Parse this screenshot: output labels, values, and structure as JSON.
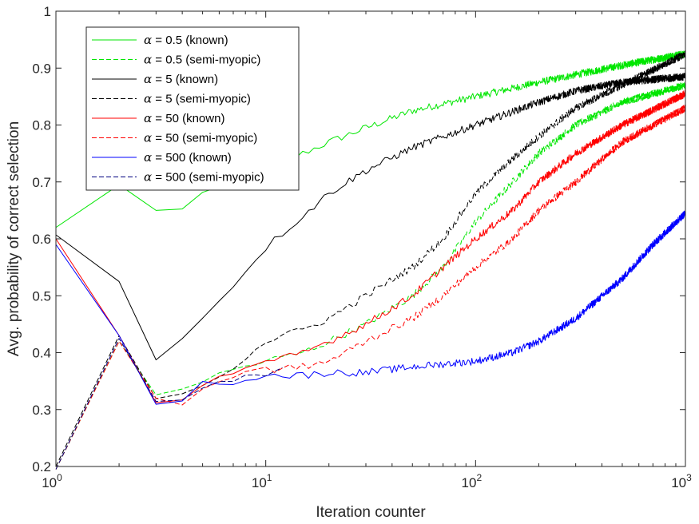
{
  "chart_data": {
    "type": "line",
    "xscale": "log",
    "xlim": [
      1,
      1000
    ],
    "ylim": [
      0.2,
      1.0
    ],
    "xlabel": "Iteration counter",
    "ylabel": "Avg. probability of correct selection",
    "xticks": [
      {
        "value": 1,
        "base": "10",
        "exp": "0"
      },
      {
        "value": 10,
        "base": "10",
        "exp": "1"
      },
      {
        "value": 100,
        "base": "10",
        "exp": "2"
      },
      {
        "value": 1000,
        "base": "10",
        "exp": "3"
      }
    ],
    "yticks": [
      {
        "value": 0.2,
        "label": "0.2"
      },
      {
        "value": 0.3,
        "label": "0.3"
      },
      {
        "value": 0.4,
        "label": "0.4"
      },
      {
        "value": 0.5,
        "label": "0.5"
      },
      {
        "value": 0.6,
        "label": "0.6"
      },
      {
        "value": 0.7,
        "label": "0.7"
      },
      {
        "value": 0.8,
        "label": "0.8"
      },
      {
        "value": 0.9,
        "label": "0.9"
      },
      {
        "value": 1.0,
        "label": "1"
      }
    ],
    "legend_position": "top-left",
    "series": [
      {
        "name": "α = 0.5 (known)",
        "alpha_symbol": "α",
        "rest": " = 0.5 (known)",
        "color": "#00e600",
        "dash": "solid",
        "points": [
          [
            1,
            0.62
          ],
          [
            2,
            0.695
          ],
          [
            3,
            0.648
          ],
          [
            4,
            0.655
          ],
          [
            5,
            0.68
          ],
          [
            6,
            0.685
          ],
          [
            7,
            0.695
          ],
          [
            10,
            0.72
          ],
          [
            15,
            0.75
          ],
          [
            20,
            0.77
          ],
          [
            30,
            0.795
          ],
          [
            50,
            0.825
          ],
          [
            100,
            0.85
          ],
          [
            200,
            0.875
          ],
          [
            500,
            0.905
          ],
          [
            1000,
            0.925
          ]
        ]
      },
      {
        "name": "α = 0.5 (semi-myopic)",
        "alpha_symbol": "α",
        "rest": " = 0.5 (semi-myopic)",
        "color": "#00e600",
        "dash": "dashed",
        "points": [
          [
            1,
            0.195
          ],
          [
            2,
            0.42
          ],
          [
            3,
            0.325
          ],
          [
            4,
            0.34
          ],
          [
            5,
            0.35
          ],
          [
            7,
            0.37
          ],
          [
            10,
            0.385
          ],
          [
            15,
            0.4
          ],
          [
            20,
            0.42
          ],
          [
            30,
            0.45
          ],
          [
            50,
            0.5
          ],
          [
            70,
            0.55
          ],
          [
            100,
            0.63
          ],
          [
            150,
            0.7
          ],
          [
            200,
            0.75
          ],
          [
            300,
            0.8
          ],
          [
            500,
            0.84
          ],
          [
            1000,
            0.87
          ]
        ]
      },
      {
        "name": "α = 5 (known)",
        "alpha_symbol": "α",
        "rest": " = 5 (known)",
        "color": "#000000",
        "dash": "solid",
        "points": [
          [
            1,
            0.607
          ],
          [
            2,
            0.525
          ],
          [
            3,
            0.39
          ],
          [
            4,
            0.43
          ],
          [
            5,
            0.46
          ],
          [
            6,
            0.495
          ],
          [
            7,
            0.515
          ],
          [
            8,
            0.545
          ],
          [
            10,
            0.585
          ],
          [
            15,
            0.64
          ],
          [
            20,
            0.68
          ],
          [
            30,
            0.72
          ],
          [
            50,
            0.76
          ],
          [
            100,
            0.8
          ],
          [
            200,
            0.84
          ],
          [
            300,
            0.86
          ],
          [
            500,
            0.875
          ],
          [
            1000,
            0.885
          ]
        ]
      },
      {
        "name": "α = 5 (semi-myopic)",
        "alpha_symbol": "α",
        "rest": " = 5 (semi-myopic)",
        "color": "#000000",
        "dash": "dashed",
        "points": [
          [
            1,
            0.2
          ],
          [
            2,
            0.43
          ],
          [
            3,
            0.32
          ],
          [
            4,
            0.33
          ],
          [
            5,
            0.345
          ],
          [
            7,
            0.375
          ],
          [
            10,
            0.42
          ],
          [
            15,
            0.44
          ],
          [
            20,
            0.46
          ],
          [
            30,
            0.5
          ],
          [
            50,
            0.55
          ],
          [
            70,
            0.6
          ],
          [
            100,
            0.68
          ],
          [
            150,
            0.74
          ],
          [
            200,
            0.78
          ],
          [
            300,
            0.83
          ],
          [
            500,
            0.87
          ],
          [
            1000,
            0.925
          ]
        ]
      },
      {
        "name": "α = 50 (known)",
        "alpha_symbol": "α",
        "rest": " = 50 (known)",
        "color": "#ff0000",
        "dash": "solid",
        "points": [
          [
            1,
            0.6
          ],
          [
            2,
            0.43
          ],
          [
            3,
            0.315
          ],
          [
            4,
            0.32
          ],
          [
            5,
            0.345
          ],
          [
            7,
            0.365
          ],
          [
            10,
            0.38
          ],
          [
            15,
            0.4
          ],
          [
            20,
            0.42
          ],
          [
            30,
            0.45
          ],
          [
            50,
            0.5
          ],
          [
            70,
            0.55
          ],
          [
            100,
            0.6
          ],
          [
            150,
            0.65
          ],
          [
            200,
            0.7
          ],
          [
            300,
            0.75
          ],
          [
            500,
            0.8
          ],
          [
            1000,
            0.855
          ]
        ]
      },
      {
        "name": "α = 50 (semi-myopic)",
        "alpha_symbol": "α",
        "rest": " = 50 (semi-myopic)",
        "color": "#ff0000",
        "dash": "dashed",
        "points": [
          [
            1,
            0.195
          ],
          [
            2,
            0.42
          ],
          [
            3,
            0.32
          ],
          [
            4,
            0.31
          ],
          [
            5,
            0.335
          ],
          [
            7,
            0.36
          ],
          [
            10,
            0.37
          ],
          [
            15,
            0.375
          ],
          [
            20,
            0.385
          ],
          [
            30,
            0.42
          ],
          [
            50,
            0.46
          ],
          [
            70,
            0.5
          ],
          [
            100,
            0.55
          ],
          [
            150,
            0.6
          ],
          [
            200,
            0.65
          ],
          [
            300,
            0.7
          ],
          [
            500,
            0.77
          ],
          [
            1000,
            0.83
          ]
        ]
      },
      {
        "name": "α = 500 (known)",
        "alpha_symbol": "α",
        "rest": " = 500 (known)",
        "color": "#0000ff",
        "dash": "solid",
        "points": [
          [
            1,
            0.59
          ],
          [
            2,
            0.43
          ],
          [
            3,
            0.315
          ],
          [
            4,
            0.315
          ],
          [
            5,
            0.345
          ],
          [
            7,
            0.35
          ],
          [
            10,
            0.36
          ],
          [
            15,
            0.36
          ],
          [
            20,
            0.365
          ],
          [
            30,
            0.365
          ],
          [
            50,
            0.375
          ],
          [
            100,
            0.385
          ],
          [
            150,
            0.4
          ],
          [
            200,
            0.42
          ],
          [
            300,
            0.46
          ],
          [
            500,
            0.53
          ],
          [
            700,
            0.59
          ],
          [
            1000,
            0.645
          ]
        ]
      },
      {
        "name": "α = 500 (semi-myopic)",
        "alpha_symbol": "α",
        "rest": " = 500 (semi-myopic)",
        "color": "#000080",
        "dash": "dashed",
        "points": [
          [
            1,
            0.195
          ],
          [
            2,
            0.425
          ],
          [
            3,
            0.315
          ],
          [
            4,
            0.32
          ],
          [
            5,
            0.34
          ],
          [
            7,
            0.355
          ],
          [
            10,
            0.365
          ],
          [
            12,
            0.37
          ]
        ]
      }
    ]
  }
}
